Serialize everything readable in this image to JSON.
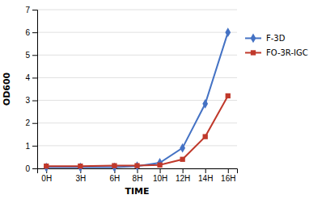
{
  "chart_data": {
    "type": "line",
    "x": [
      0,
      3,
      6,
      8,
      10,
      12,
      14,
      16
    ],
    "series": [
      {
        "name": "F-3D",
        "color": "#4472C4",
        "marker": "diamond",
        "values": [
          0.05,
          0.05,
          0.05,
          0.1,
          0.25,
          0.9,
          2.85,
          6.0
        ]
      },
      {
        "name": "FO-3R-IGC",
        "color": "#C0392B",
        "marker": "square",
        "values": [
          0.1,
          0.1,
          0.12,
          0.12,
          0.15,
          0.4,
          1.4,
          3.2
        ]
      }
    ],
    "xlabel": "TIME",
    "ylabel": "OD600",
    "xlim": [
      -0.8,
      16.8
    ],
    "xticks": [
      {
        "value": 0,
        "label": "0H"
      },
      {
        "value": 3,
        "label": "3H"
      },
      {
        "value": 6,
        "label": "6H"
      },
      {
        "value": 8,
        "label": "8H"
      },
      {
        "value": 10,
        "label": "10H"
      },
      {
        "value": 12,
        "label": "12H"
      },
      {
        "value": 14,
        "label": "14H"
      },
      {
        "value": 16,
        "label": "16H"
      }
    ],
    "ylim": [
      0,
      7
    ],
    "yticks": [
      0,
      1,
      2,
      3,
      4,
      5,
      6,
      7
    ],
    "grid": true,
    "legend": "right"
  }
}
